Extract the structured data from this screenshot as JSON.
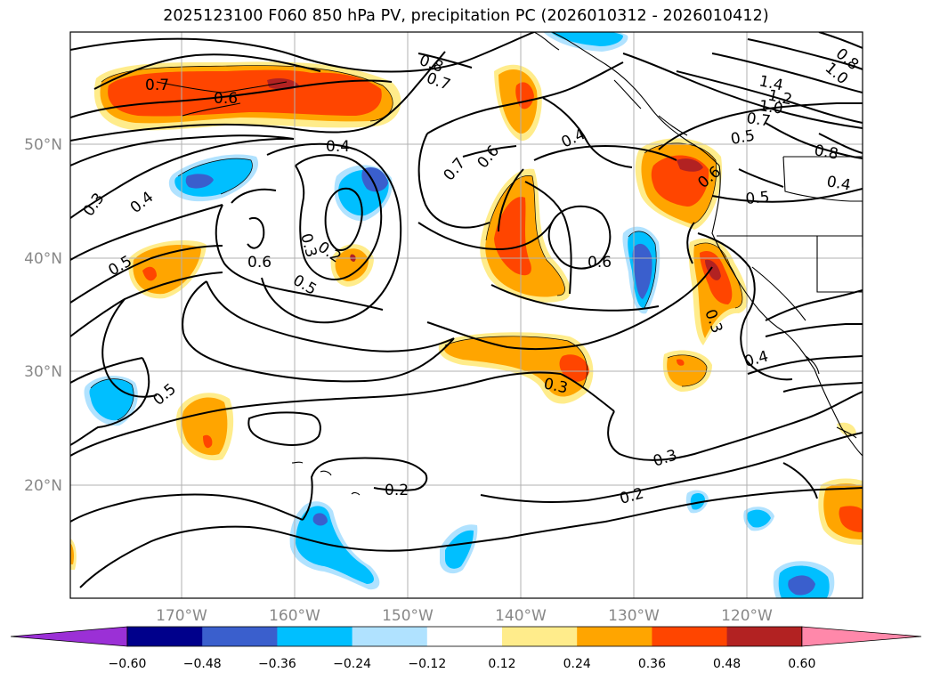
{
  "title": "2025123100 F060 850 hPa PV, precipitation PC (2026010312 - 2026010412)",
  "lat_ticks": [
    "50°N",
    "40°N",
    "30°N",
    "20°N"
  ],
  "lon_ticks": [
    "170°W",
    "160°W",
    "150°W",
    "140°W",
    "130°W",
    "120°W"
  ],
  "contour_labels": [
    "0.7",
    "0.6",
    "0.8",
    "0.7",
    "1.4",
    "1.2",
    "1.0",
    "0.7",
    "0.5",
    "0.8",
    "0.4",
    "0.5",
    "0.6",
    "0.4",
    "0.6",
    "0.7",
    "0.4",
    "0.3",
    "0.4",
    "0.3",
    "0.2",
    "0.6",
    "0.5",
    "0.5",
    "0.6",
    "0.3",
    "0.4",
    "0.3",
    "0.5",
    "0.3",
    "0.2",
    "0.2",
    "1.0",
    "0.8"
  ],
  "colorbar": {
    "labels": [
      "−0.60",
      "−0.48",
      "−0.36",
      "−0.24",
      "−0.12",
      "0.12",
      "0.24",
      "0.36",
      "0.48",
      "0.60"
    ],
    "colors": [
      "#9b30d6",
      "#00008b",
      "#3a5fcd",
      "#00bfff",
      "#b0e2ff",
      "#ffffff",
      "#ffec8b",
      "#ffa500",
      "#ff4500",
      "#b22222",
      "#ff88aa"
    ]
  },
  "field_colors": {
    "pos_light": "#ffec8b",
    "pos_mid": "#ffa500",
    "pos_strong": "#ff4500",
    "pos_max": "#b22222",
    "neg_light": "#b0e2ff",
    "neg_mid": "#00bfff",
    "neg_strong": "#3a5fcd"
  }
}
